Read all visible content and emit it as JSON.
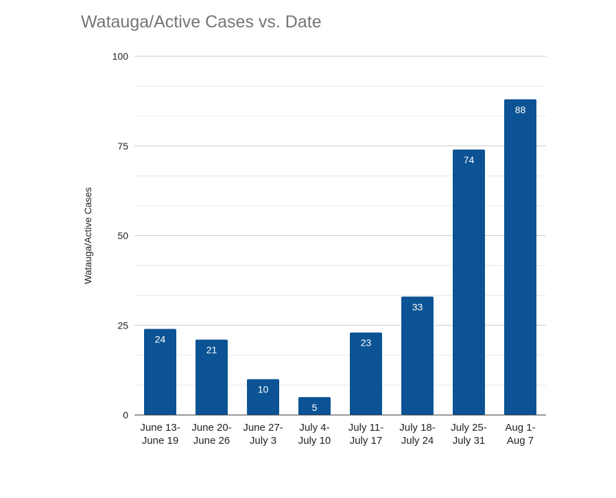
{
  "chart_data": {
    "type": "bar",
    "title": "Watauga/Active Cases vs. Date",
    "xlabel": "",
    "ylabel": "Watauga/Active Cases",
    "categories": [
      [
        "June 13-",
        "June 19"
      ],
      [
        "June 20-",
        "June 26"
      ],
      [
        "June 27-",
        "July 3"
      ],
      [
        "July 4-",
        "July 10"
      ],
      [
        "July 11-",
        "July 17"
      ],
      [
        "July 18-",
        "July 24"
      ],
      [
        "July 25-",
        "July 31"
      ],
      [
        "Aug 1-",
        "Aug 7"
      ]
    ],
    "values": [
      24,
      21,
      10,
      5,
      23,
      33,
      74,
      88
    ],
    "ylim": [
      0,
      100
    ],
    "yticks": [
      "0",
      "25",
      "50",
      "75",
      "100"
    ],
    "grid": true,
    "legend": "none",
    "colors": {
      "bar": "#0b5394",
      "grid_major": "#cccccc",
      "grid_minor": "#e6e6e6",
      "title": "#757575"
    }
  }
}
